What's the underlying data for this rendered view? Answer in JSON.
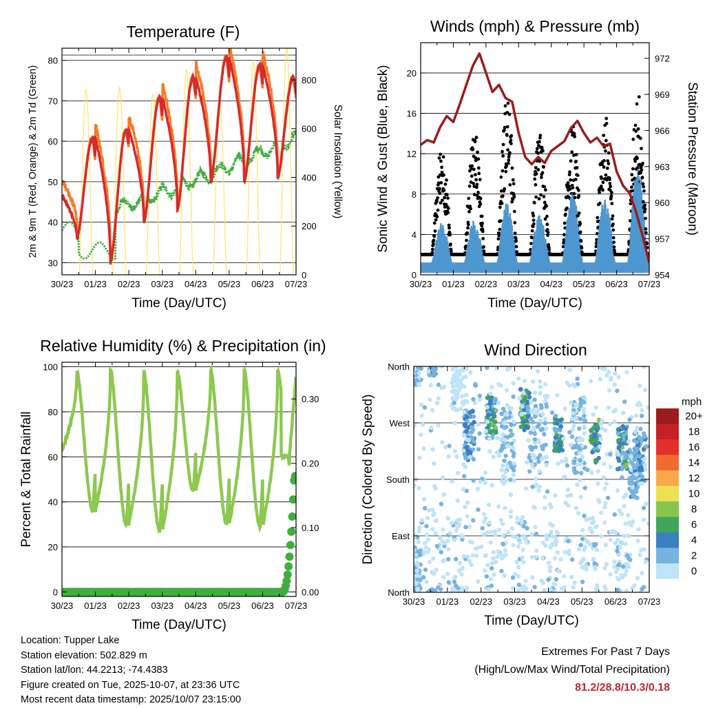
{
  "colors": {
    "temp_2m": "#d62b2b",
    "temp_9m": "#f57c28",
    "dewpoint": "#3fae3f",
    "solar": "#ffe566",
    "wind": "#4f97cf",
    "gust": "#000000",
    "pressure": "#9b1c1c",
    "rh": "#8dc850",
    "precip": "#3fae3f"
  },
  "speed_colorbar": {
    "unit": "mph",
    "labels": [
      "20+",
      "18",
      "16",
      "14",
      "12",
      "10",
      "8",
      "6",
      "4",
      "2",
      "0"
    ],
    "colors": [
      "#9b1c1c",
      "#c72027",
      "#e2312b",
      "#f26a2e",
      "#f9a849",
      "#ece155",
      "#87c64e",
      "#3fa65c",
      "#3b7fbf",
      "#77b3e0",
      "#bfe3f8"
    ]
  },
  "chart_data": [
    {
      "id": "temperature",
      "type": "line",
      "title": "Temperature (F)",
      "xlabel": "Time (Day/UTC)",
      "ylabel": "2m & 9m T (Red, Orange) & 2m Td (Green)",
      "ylabel_right": "Solar Insolation (Yellow)",
      "xticks": [
        "30/23",
        "01/23",
        "02/23",
        "03/23",
        "04/23",
        "05/23",
        "06/23",
        "07/23"
      ],
      "xlim": [
        0,
        7
      ],
      "ylim": [
        27,
        83
      ],
      "yticks": [
        30,
        40,
        50,
        60,
        70,
        80
      ],
      "ylim_right": [
        0,
        930
      ],
      "yticks_right": [
        0,
        200,
        400,
        600,
        800
      ],
      "grid": true,
      "daily_max_2m": [
        61,
        63,
        71,
        76,
        81,
        79,
        76
      ],
      "daily_min_2m": [
        36,
        30,
        40,
        43,
        50,
        50,
        51
      ],
      "dewpoint_start": 40,
      "dewpoint_end": 61,
      "solar_daily_peak": [
        760,
        770,
        740,
        840,
        720,
        880,
        930
      ]
    },
    {
      "id": "winds_pressure",
      "type": "scatter",
      "title": "Winds (mph) & Pressure (mb)",
      "xlabel": "Time (Day/UTC)",
      "ylabel": "Sonic Wind & Gust (Blue, Black)",
      "ylabel_right": "Station Pressure (Maroon)",
      "xticks": [
        "30/23",
        "01/23",
        "02/23",
        "03/23",
        "04/23",
        "05/23",
        "06/23",
        "07/23"
      ],
      "xlim": [
        0,
        7
      ],
      "ylim": [
        0,
        23
      ],
      "yticks": [
        0,
        4,
        8,
        12,
        16,
        20
      ],
      "ylim_right": [
        954,
        973.3
      ],
      "yticks_right": [
        954,
        957,
        960,
        963,
        966,
        969,
        972
      ],
      "grid": true,
      "pressure_series": {
        "x": [
          0,
          0.2,
          0.4,
          0.6,
          0.8,
          1.0,
          1.2,
          1.4,
          1.6,
          1.8,
          2.0,
          2.2,
          2.4,
          2.6,
          2.8,
          3.0,
          3.2,
          3.4,
          3.6,
          3.8,
          4.0,
          4.2,
          4.4,
          4.6,
          4.8,
          5.0,
          5.2,
          5.4,
          5.6,
          5.8,
          6.0,
          6.2,
          6.4,
          6.6,
          6.8,
          7.0
        ],
        "values": [
          964.8,
          965.2,
          965.0,
          966.3,
          967.2,
          966.7,
          968.2,
          969.8,
          971.4,
          972.4,
          970.8,
          969.2,
          969.8,
          968.7,
          968.4,
          965.8,
          963.8,
          963.2,
          963.8,
          963.3,
          964.3,
          964.7,
          965.1,
          966.2,
          966.8,
          965.8,
          965.0,
          965.4,
          964.7,
          964.9,
          962.6,
          961.4,
          960.8,
          959.2,
          957.2,
          955.0
        ]
      },
      "daily_max_gust": [
        13,
        15,
        18,
        14,
        15,
        16,
        18.5
      ],
      "daily_max_wind": [
        5,
        5.5,
        7,
        6,
        8,
        7.5,
        10.3
      ]
    },
    {
      "id": "rh_precip",
      "type": "line",
      "title": "Relative Humidity (%) & Precipitation (in)",
      "xlabel": "Time (Day/UTC)",
      "ylabel": "Percent & Total Rainfall",
      "xticks": [
        "30/23",
        "01/23",
        "02/23",
        "03/23",
        "04/23",
        "05/23",
        "06/23",
        "07/23"
      ],
      "xlim": [
        0,
        7
      ],
      "ylim": [
        -2,
        102
      ],
      "yticks": [
        0,
        20,
        40,
        60,
        80,
        100
      ],
      "ylim_right": [
        -0.007,
        0.357
      ],
      "yticks_right": [
        "0.00",
        "0.10",
        "0.20",
        "0.30"
      ],
      "grid": true,
      "rh_daily_max": [
        98,
        99,
        98,
        98,
        99,
        99,
        98
      ],
      "rh_daily_min": [
        36,
        30,
        27,
        45,
        30,
        29,
        50
      ],
      "rh_start": 63,
      "rh_end": 95,
      "precip_total": 0.18,
      "precip_start_day": 6.6
    },
    {
      "id": "wind_direction",
      "type": "scatter",
      "title": "Wind Direction",
      "xlabel": "Time (Day/UTC)",
      "ylabel": "Direction (Colored By Speed)",
      "xticks": [
        "30/23",
        "01/23",
        "02/23",
        "03/23",
        "04/23",
        "05/23",
        "06/23",
        "07/23"
      ],
      "xlim": [
        0,
        7
      ],
      "ylim": [
        0,
        360
      ],
      "yticks": [
        "North",
        "East",
        "South",
        "West",
        "North"
      ],
      "ytick_values": [
        0,
        90,
        180,
        270,
        360
      ],
      "grid": true,
      "colorbar_unit": "mph"
    }
  ],
  "station_info": {
    "location": "Location: Tupper Lake",
    "elevation": "Station elevation: 502.829 m",
    "latlon": "Station lat/lon: 44.2213; -74.4383",
    "created": "Figure created on Tue, 2025-10-07, at 23:36 UTC",
    "recent": "Most recent data timestamp: 2025/10/07 23:15:00"
  },
  "extremes": {
    "title": "Extremes For Past 7 Days",
    "subtitle": "(High/Low/Max Wind/Total Precipitation)",
    "values": "81.2/28.8/10.3/0.18"
  }
}
